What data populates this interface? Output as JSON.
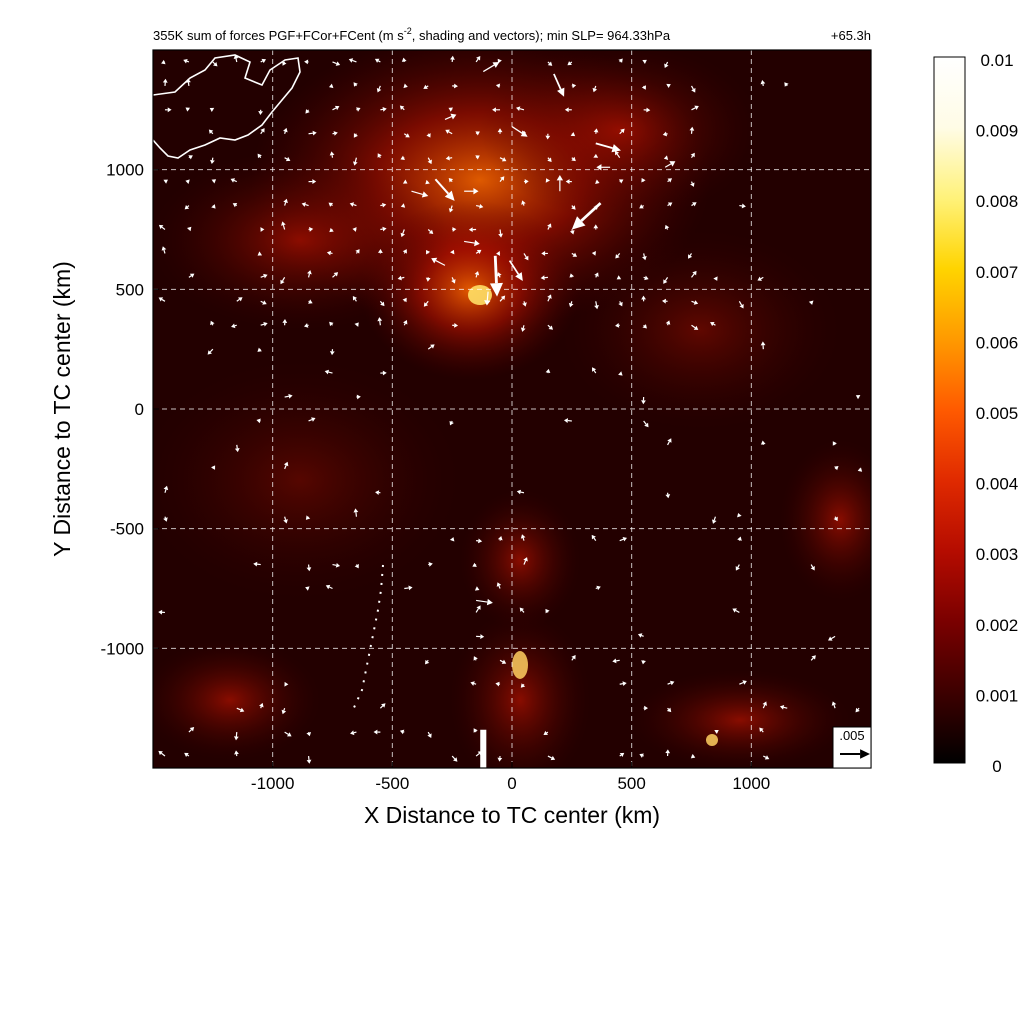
{
  "chart_data": {
    "type": "heatmap",
    "title": "355K sum of forces PGF+FCor+FCent (m s",
    "title_sup": "-2",
    "title_rest": ", shading and vectors); min SLP= 964.33hPa",
    "time_label": "+65.3h",
    "xlabel": "X Distance to TC center (km)",
    "ylabel": "Y Distance to TC center (km)",
    "xlim": [
      -1500,
      1500
    ],
    "ylim": [
      -1500,
      1500
    ],
    "x_ticks": [
      -1000,
      -500,
      0,
      500,
      1000
    ],
    "x_tick_labels": [
      "-1000",
      "-500",
      "0",
      "500",
      "1000"
    ],
    "y_ticks": [
      1000,
      500,
      0,
      -500,
      -1000
    ],
    "y_tick_labels": [
      "1000",
      "500",
      "0",
      "-500",
      "-1000"
    ],
    "grid": true,
    "colorbar": {
      "min": 0,
      "max": 0.01,
      "ticks": [
        0.01,
        0.009,
        0.008,
        0.007,
        0.006,
        0.005,
        0.004,
        0.003,
        0.002,
        0.001,
        0
      ],
      "tick_labels": [
        "0.01",
        "0.009",
        "0.008",
        "0.007",
        "0.006",
        "0.005",
        "0.004",
        "0.003",
        "0.002",
        "0.001",
        "0"
      ],
      "colors": [
        "#000000",
        "#3d0000",
        "#7a0000",
        "#b50c00",
        "#e02a00",
        "#ff5a00",
        "#ff9a00",
        "#ffd400",
        "#fff27a",
        "#fffce6",
        "#ffffff"
      ]
    },
    "reference_vector": {
      "label": ".005",
      "magnitude": 0.005
    },
    "strong_vectors": [
      {
        "x": -120,
        "y": -1340,
        "u": 0,
        "v": -0.0145
      },
      {
        "x": -70,
        "y": 640,
        "u": 0.0003,
        "v": -0.0068
      },
      {
        "x": -320,
        "y": 960,
        "u": 0.0032,
        "v": -0.0036
      },
      {
        "x": 370,
        "y": 860,
        "u": -0.0048,
        "v": -0.0044
      },
      {
        "x": 350,
        "y": 1110,
        "u": 0.0042,
        "v": -0.0012
      },
      {
        "x": -10,
        "y": 620,
        "u": 0.0022,
        "v": -0.0034
      },
      {
        "x": -280,
        "y": 600,
        "u": -0.0023,
        "v": 0.0012
      },
      {
        "x": -200,
        "y": 910,
        "u": 0.0024,
        "v": 0
      },
      {
        "x": -420,
        "y": 910,
        "u": 0.0028,
        "v": -0.0008
      },
      {
        "x": 175,
        "y": 1400,
        "u": 0.0017,
        "v": -0.0038
      },
      {
        "x": 0,
        "y": 1180,
        "u": 0.0026,
        "v": -0.0017
      },
      {
        "x": -120,
        "y": 1410,
        "u": 0.0027,
        "v": 0.0016
      },
      {
        "x": -200,
        "y": 700,
        "u": 0.0026,
        "v": -0.0004
      },
      {
        "x": 200,
        "y": 910,
        "u": 0,
        "v": 0.0027
      },
      {
        "x": -100,
        "y": 490,
        "u": -0.0002,
        "v": -0.0023
      },
      {
        "x": -150,
        "y": -800,
        "u": 0.0028,
        "v": -0.0004
      },
      {
        "x": 410,
        "y": 1010,
        "u": -0.0023,
        "v": 0
      },
      {
        "x": 640,
        "y": 1010,
        "u": 0.0017,
        "v": 0.001
      },
      {
        "x": -280,
        "y": 1210,
        "u": 0.0019,
        "v": 0.0008
      },
      {
        "x": 1400,
        "y": -1400,
        "u": 0.0045,
        "v": 0
      }
    ]
  }
}
